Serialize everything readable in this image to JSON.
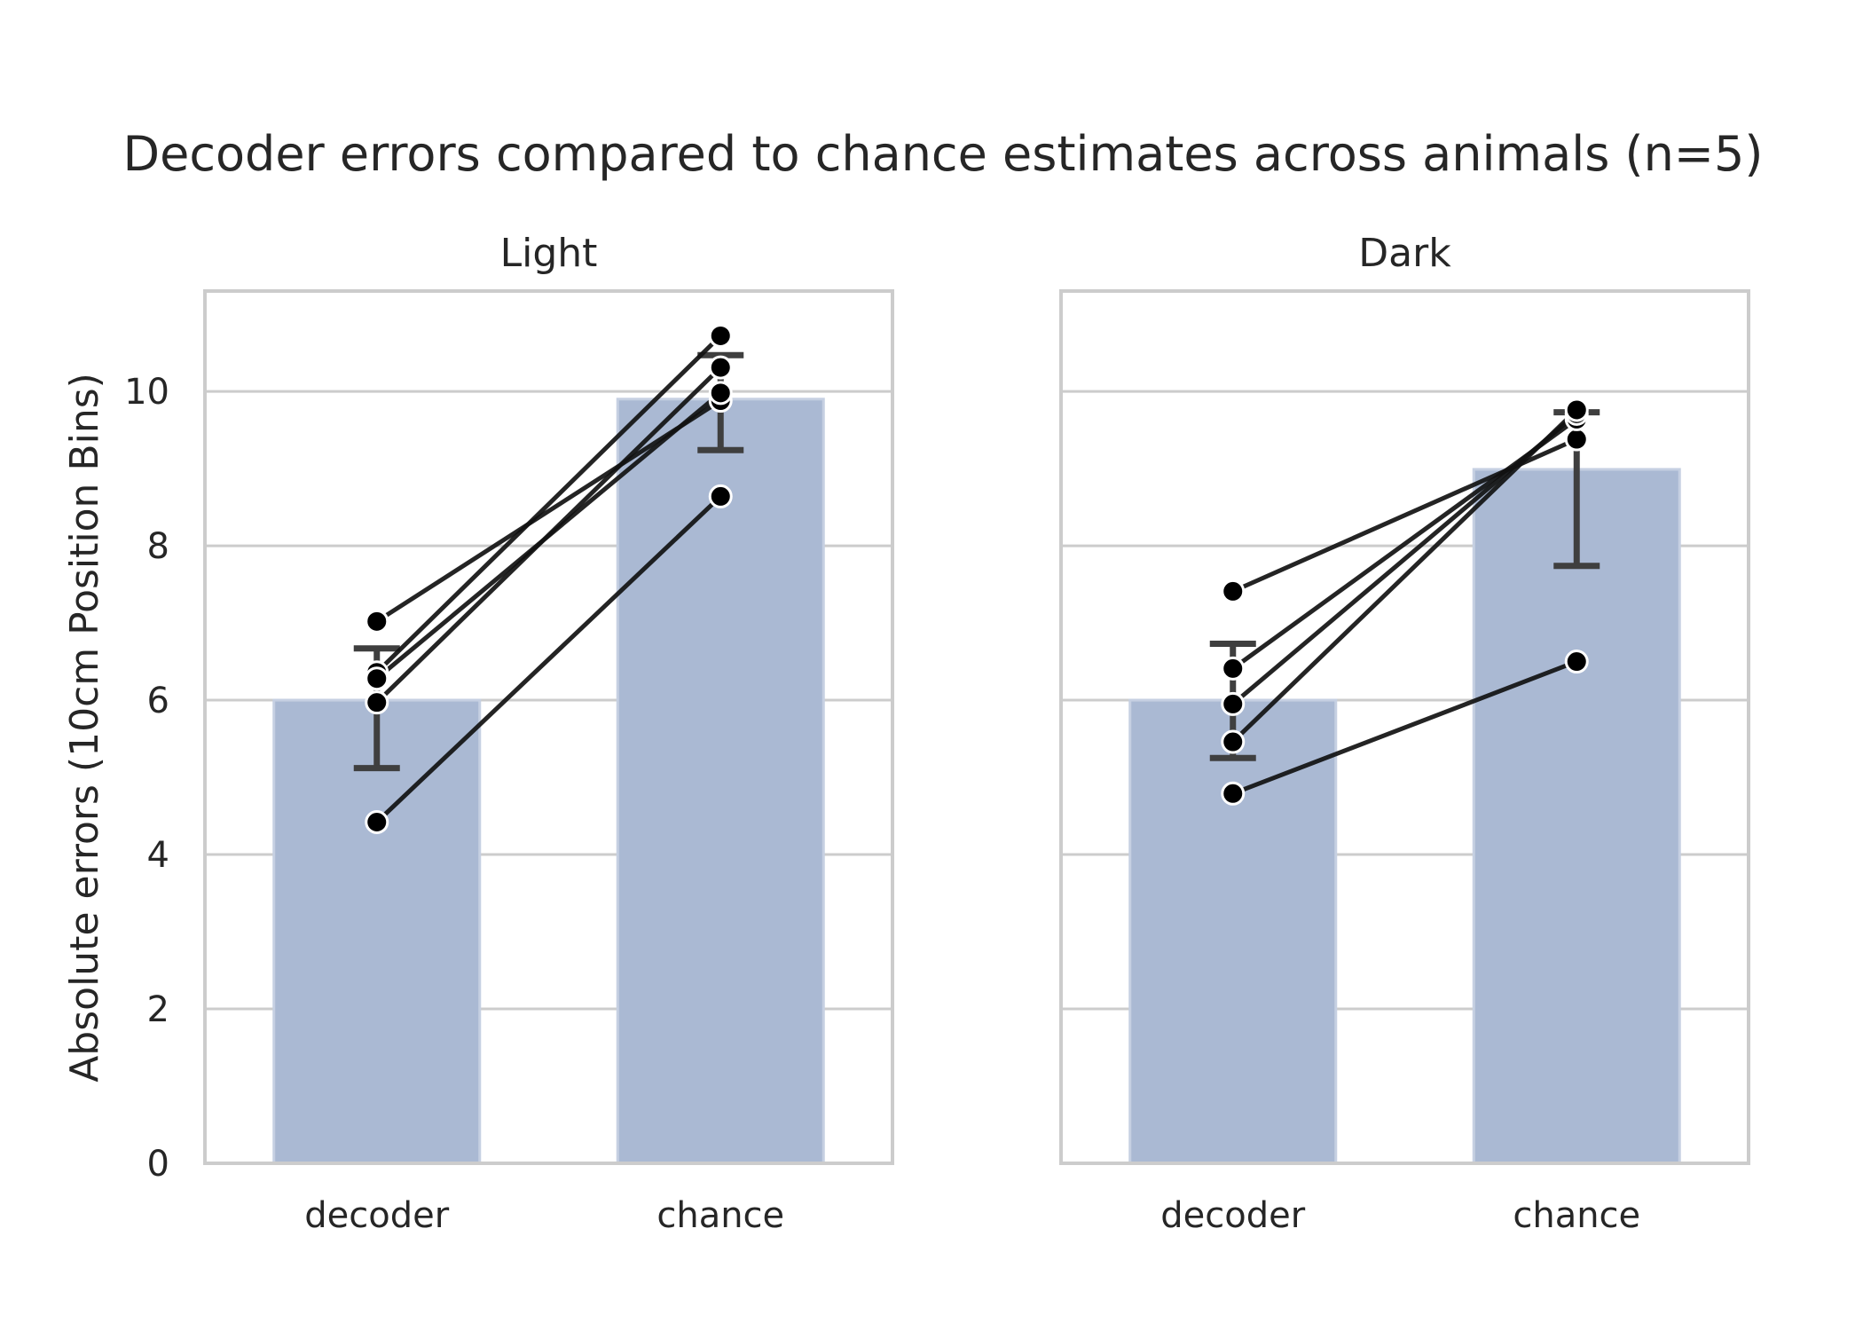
{
  "chart_data": {
    "type": "bar",
    "title": "Decoder errors compared to chance estimates across animals (n=5)",
    "ylabel": "Absolute errors (10cm Position Bins)",
    "xlabel": "",
    "ylim": [
      0,
      11.3
    ],
    "yticks": [
      0,
      2,
      4,
      6,
      8,
      10
    ],
    "grid": true,
    "categories": [
      "decoder",
      "chance"
    ],
    "colors": {
      "bar": "#aab9d3",
      "bar_edge": "#c6d0e2",
      "error_bar": "#3f3f3f",
      "animal_line": "#111111",
      "point": "#000000",
      "point_edge": "#ffffff",
      "grid": "#cccccc",
      "frame": "#cccccc"
    },
    "panels": [
      {
        "title": "Light",
        "bars": [
          {
            "category": "decoder",
            "mean": 6.0,
            "ci": [
              5.12,
              6.67
            ]
          },
          {
            "category": "chance",
            "mean": 9.9,
            "ci": [
              9.24,
              10.47
            ]
          }
        ],
        "animals": [
          {
            "decoder": 7.02,
            "chance": 9.88
          },
          {
            "decoder": 6.36,
            "chance": 10.72
          },
          {
            "decoder": 6.28,
            "chance": 9.98
          },
          {
            "decoder": 5.97,
            "chance": 10.31
          },
          {
            "decoder": 4.42,
            "chance": 8.64
          }
        ]
      },
      {
        "title": "Dark",
        "bars": [
          {
            "category": "decoder",
            "mean": 6.0,
            "ci": [
              5.25,
              6.73
            ]
          },
          {
            "category": "chance",
            "mean": 8.99,
            "ci": [
              7.74,
              9.73
            ]
          }
        ],
        "animals": [
          {
            "decoder": 7.41,
            "chance": 9.38
          },
          {
            "decoder": 6.41,
            "chance": 9.64
          },
          {
            "decoder": 5.95,
            "chance": 9.71
          },
          {
            "decoder": 5.46,
            "chance": 9.76
          },
          {
            "decoder": 4.79,
            "chance": 6.5
          }
        ]
      }
    ]
  }
}
